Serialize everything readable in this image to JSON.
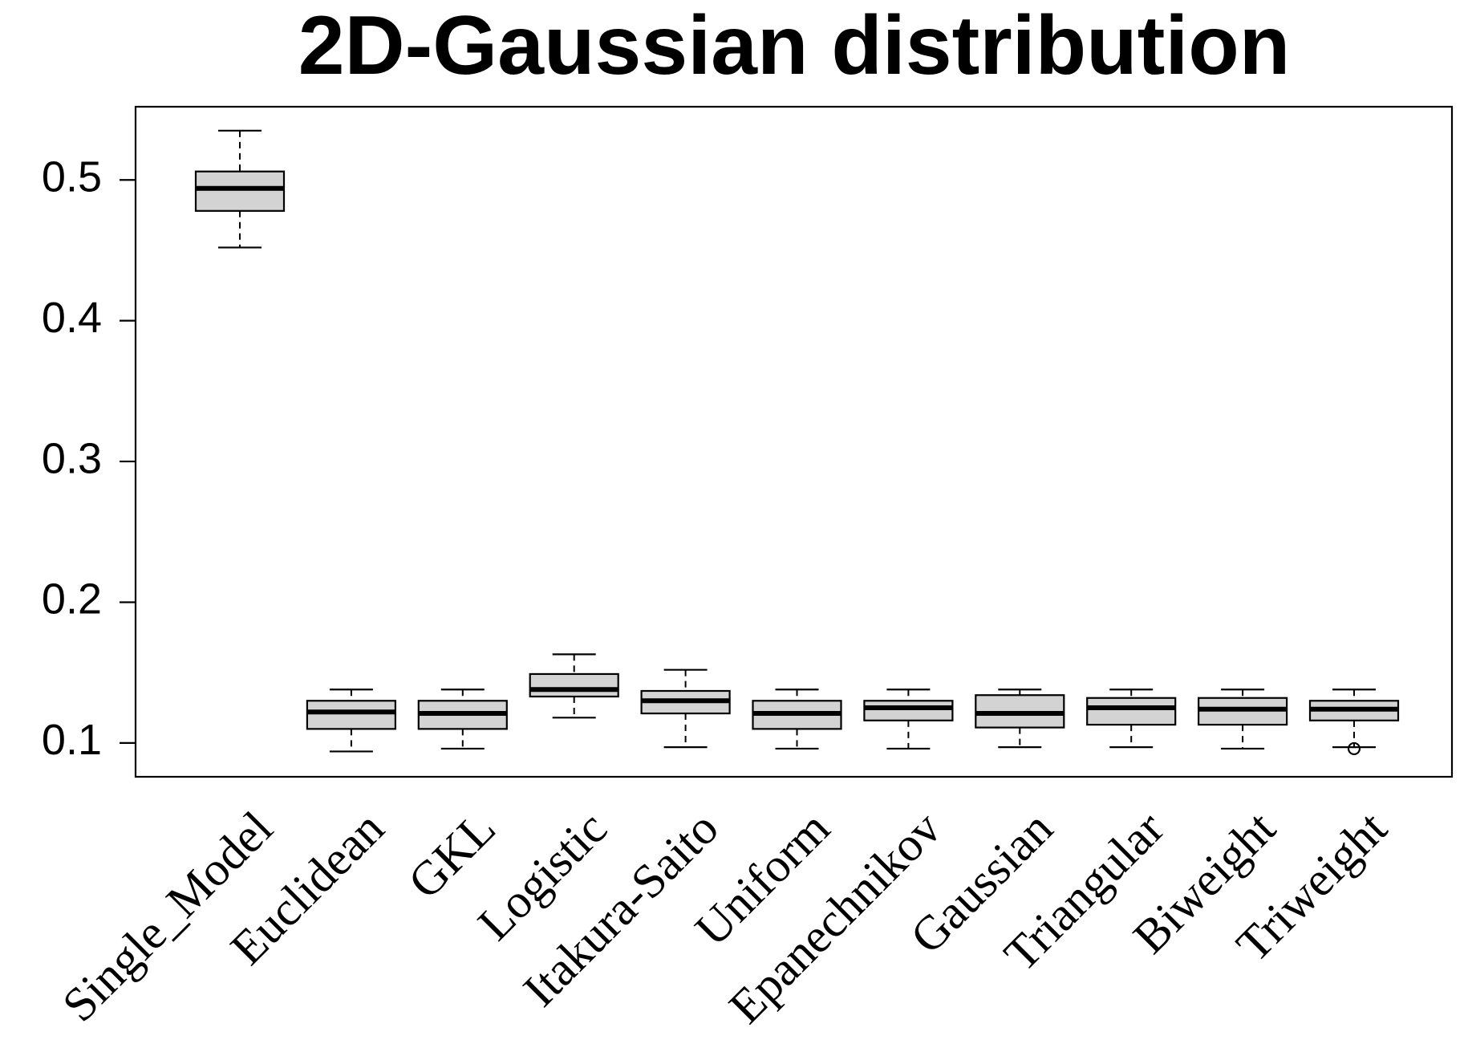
{
  "chart_data": {
    "type": "boxplot",
    "title": "2D-Gaussian distribution",
    "xlabel": "",
    "ylabel": "",
    "ylim": [
      0.076,
      0.552
    ],
    "y_ticks": [
      "0.1",
      "0.2",
      "0.3",
      "0.4",
      "0.5"
    ],
    "grid": false,
    "legend": "none",
    "box_fill": "#d3d3d3",
    "line_color": "#000000",
    "categories": [
      "Single_Model",
      "Euclidean",
      "GKL",
      "Logistic",
      "Itakura-Saito",
      "Uniform",
      "Epanechnikov",
      "Gaussian",
      "Triangular",
      "Biweight",
      "Triweight"
    ],
    "boxes": [
      {
        "name": "Single_Model",
        "whisker_low": 0.452,
        "q1": 0.478,
        "median": 0.494,
        "q3": 0.506,
        "whisker_high": 0.535,
        "outliers": []
      },
      {
        "name": "Euclidean",
        "whisker_low": 0.094,
        "q1": 0.11,
        "median": 0.122,
        "q3": 0.13,
        "whisker_high": 0.138,
        "outliers": []
      },
      {
        "name": "GKL",
        "whisker_low": 0.096,
        "q1": 0.11,
        "median": 0.121,
        "q3": 0.13,
        "whisker_high": 0.138,
        "outliers": []
      },
      {
        "name": "Logistic",
        "whisker_low": 0.118,
        "q1": 0.133,
        "median": 0.138,
        "q3": 0.149,
        "whisker_high": 0.163,
        "outliers": []
      },
      {
        "name": "Itakura-Saito",
        "whisker_low": 0.097,
        "q1": 0.121,
        "median": 0.13,
        "q3": 0.137,
        "whisker_high": 0.152,
        "outliers": []
      },
      {
        "name": "Uniform",
        "whisker_low": 0.096,
        "q1": 0.11,
        "median": 0.121,
        "q3": 0.13,
        "whisker_high": 0.138,
        "outliers": []
      },
      {
        "name": "Epanechnikov",
        "whisker_low": 0.096,
        "q1": 0.116,
        "median": 0.125,
        "q3": 0.13,
        "whisker_high": 0.138,
        "outliers": []
      },
      {
        "name": "Gaussian",
        "whisker_low": 0.097,
        "q1": 0.111,
        "median": 0.121,
        "q3": 0.134,
        "whisker_high": 0.138,
        "outliers": []
      },
      {
        "name": "Triangular",
        "whisker_low": 0.097,
        "q1": 0.113,
        "median": 0.125,
        "q3": 0.132,
        "whisker_high": 0.138,
        "outliers": []
      },
      {
        "name": "Biweight",
        "whisker_low": 0.096,
        "q1": 0.113,
        "median": 0.124,
        "q3": 0.132,
        "whisker_high": 0.138,
        "outliers": []
      },
      {
        "name": "Triweight",
        "whisker_low": 0.097,
        "q1": 0.116,
        "median": 0.124,
        "q3": 0.13,
        "whisker_high": 0.138,
        "outliers": [
          0.096
        ]
      }
    ]
  }
}
